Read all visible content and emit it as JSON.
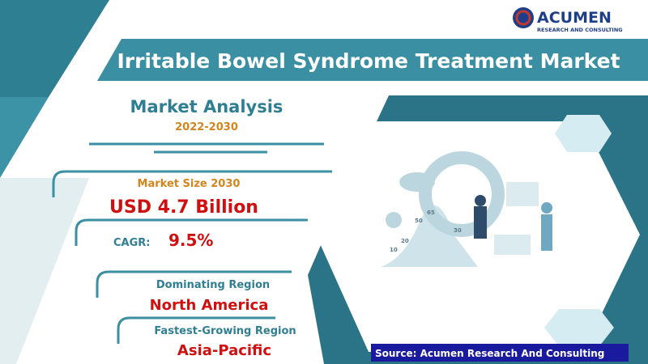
{
  "logo": {
    "name": "ACUMEN",
    "tagline": "RESEARCH AND CONSULTING"
  },
  "title": "Irritable Bowel Syndrome Treatment Market",
  "analysis": {
    "heading": "Market Analysis",
    "period": "2022-2030"
  },
  "market_size": {
    "label": "Market Size 2030",
    "value": "USD 4.7 Billion"
  },
  "cagr": {
    "label": "CAGR:",
    "value": "9.5%"
  },
  "dominating_region": {
    "label": "Dominating Region",
    "value": "North America"
  },
  "fastest_region": {
    "label": "Fastest-Growing Region",
    "value": "Asia-Pacific"
  },
  "illustration": {
    "labels": [
      "65",
      "50",
      "30",
      "20",
      "10"
    ]
  },
  "source": "Source: Acumen Research And Consulting"
}
